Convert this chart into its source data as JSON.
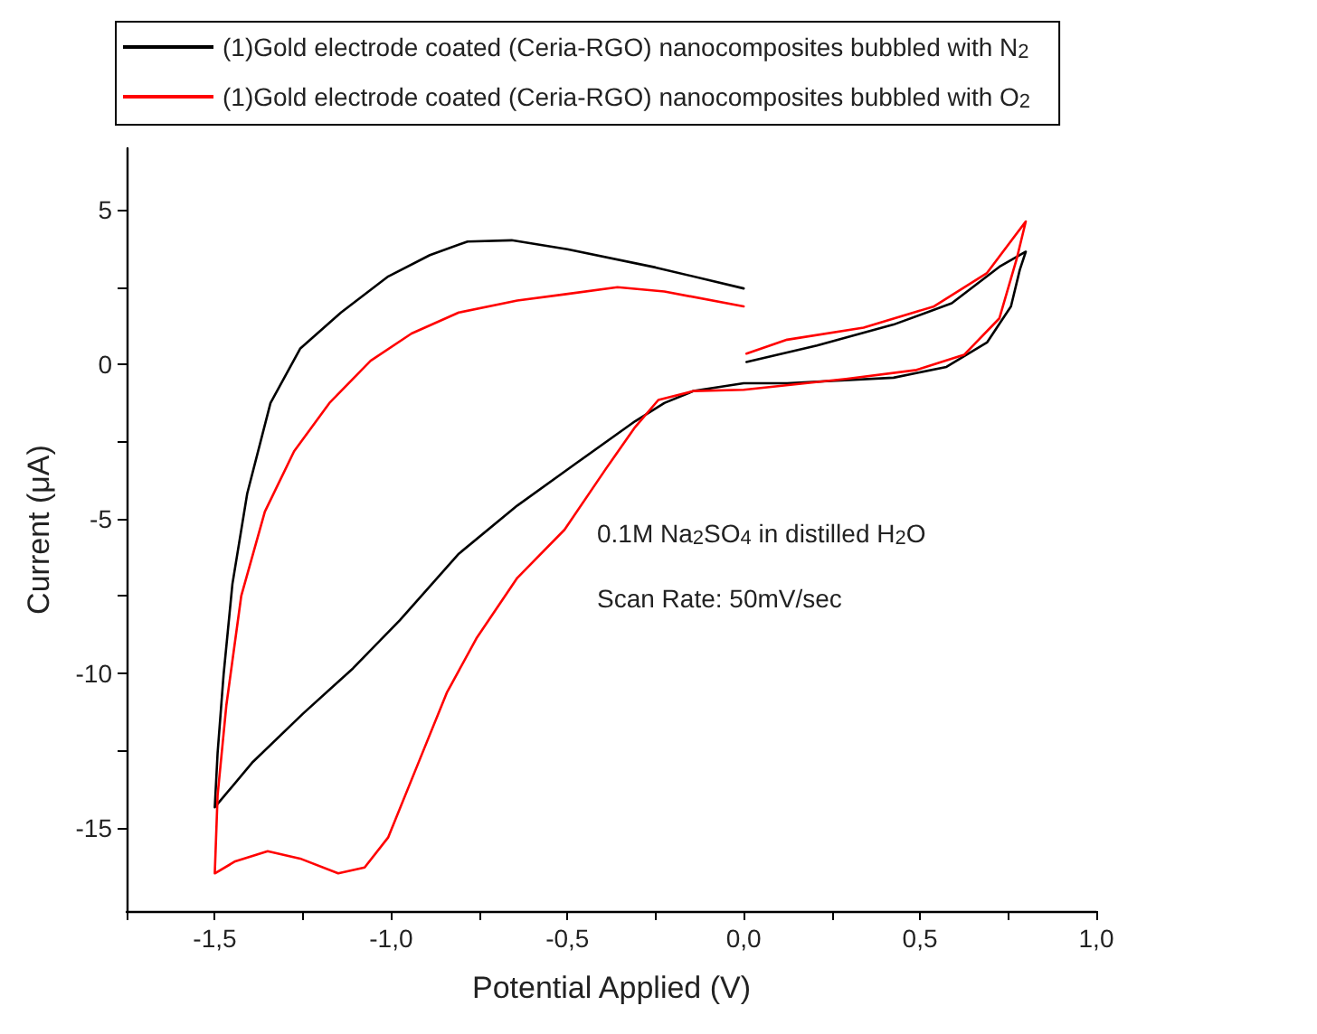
{
  "chart_data": {
    "type": "line",
    "xlabel": "Potential Applied (V)",
    "ylabel": "Current (μA)",
    "annotations": [
      "0.1M Na$_{2}$SO$_{4}$ in distilled H$_{2}$O",
      "Scan Rate: 50mV/sec"
    ],
    "xlim": [
      -1.75,
      1.0
    ],
    "xticks": [
      {
        "value": -1.75,
        "label": null
      },
      {
        "value": -1.5,
        "label": "-1,5"
      },
      {
        "value": -1.25,
        "label": null
      },
      {
        "value": -1.0,
        "label": "-1,0"
      },
      {
        "value": -0.75,
        "label": null
      },
      {
        "value": -0.5,
        "label": "-0,5"
      },
      {
        "value": -0.25,
        "label": null
      },
      {
        "value": 0,
        "label": "0,0"
      },
      {
        "value": 0.25,
        "label": null
      },
      {
        "value": 0.5,
        "label": "0,5"
      },
      {
        "value": 0.75,
        "label": null
      },
      {
        "value": 1.0,
        "label": "1,0"
      }
    ],
    "ylim": [
      -17.7,
      7
    ],
    "yticks": [
      -15,
      {
        "value": -12.5,
        "label": null
      },
      -10,
      {
        "value": -7.5,
        "label": null
      },
      -5,
      {
        "value": -2.5,
        "label": null
      },
      0,
      {
        "value": 2.5,
        "label": null
      },
      5
    ],
    "legend": "top",
    "grid": false,
    "marker": "none",
    "line_style": "solid",
    "series": [
      {
        "name": "(1)Gold electrode coated (Ceria-RGO) nanocomposites bubbled with N$_{2}$",
        "color": "#000000",
        "x": [
          0,
          -0.25,
          -0.5,
          -0.658,
          -0.783,
          -0.89,
          -1.008,
          -1.142,
          -1.258,
          -1.342,
          -1.408,
          -1.45,
          -1.475,
          -1.492,
          -1.5,
          -1.392,
          -1.25,
          -1.108,
          -0.975,
          -0.808,
          -0.642,
          -0.475,
          -0.308,
          -0.225,
          -0.142,
          0,
          0.123,
          0.425,
          0.575,
          0.69,
          0.758,
          0.783,
          0.8,
          0.725,
          0.59,
          0.425,
          0.208,
          0.008
        ],
        "values": [
          2.46,
          3.14,
          3.73,
          4.02,
          3.98,
          3.54,
          2.85,
          1.68,
          0.51,
          -1.25,
          -4.18,
          -7.11,
          -10.04,
          -12.58,
          -14.34,
          -12.87,
          -11.31,
          -9.84,
          -8.28,
          -6.13,
          -4.57,
          -3.2,
          -1.84,
          -1.25,
          -0.86,
          -0.61,
          -0.61,
          -0.43,
          -0.08,
          0.71,
          1.88,
          3.06,
          3.65,
          3.16,
          1.98,
          1.29,
          0.61,
          0.08
        ]
      },
      {
        "name": "(1)Gold electrode coated (Ceria-RGO) nanocomposites bubbled with O$_{2}$",
        "color": "#ff0000",
        "x": [
          0,
          -0.225,
          -0.358,
          -0.508,
          -0.642,
          -0.808,
          -0.942,
          -1.058,
          -1.175,
          -1.275,
          -1.358,
          -1.425,
          -1.467,
          -1.492,
          -1.5,
          -1.442,
          -1.35,
          -1.258,
          -1.15,
          -1.075,
          -1.008,
          -0.925,
          -0.842,
          -0.758,
          -0.642,
          -0.508,
          -0.392,
          -0.308,
          -0.242,
          -0.142,
          0,
          0.29,
          0.49,
          0.625,
          0.725,
          0.775,
          0.8,
          0.69,
          0.54,
          0.34,
          0.123,
          0.008
        ],
        "values": [
          1.88,
          2.36,
          2.5,
          2.27,
          2.07,
          1.68,
          1.0,
          0.12,
          -1.25,
          -2.81,
          -4.77,
          -7.5,
          -11.02,
          -13.95,
          -16.48,
          -16.09,
          -15.76,
          -16.0,
          -16.48,
          -16.29,
          -15.31,
          -12.97,
          -10.63,
          -8.87,
          -6.91,
          -5.35,
          -3.4,
          -2.03,
          -1.15,
          -0.86,
          -0.82,
          -0.47,
          -0.18,
          0.31,
          1.49,
          3.45,
          4.63,
          2.96,
          1.88,
          1.19,
          0.8,
          0.35
        ]
      }
    ]
  }
}
